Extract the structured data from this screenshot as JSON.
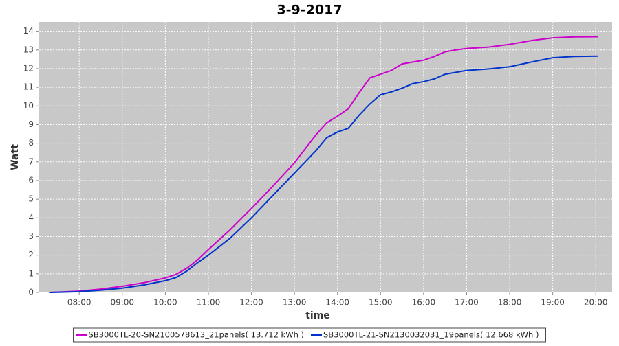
{
  "chart_data": {
    "type": "line",
    "title": "3-9-2017",
    "x_label": "time",
    "y_label": "Watt",
    "x": [
      7.3,
      7.5,
      8,
      8.5,
      9,
      9.5,
      10,
      10.25,
      10.5,
      10.75,
      11,
      11.5,
      12,
      12.5,
      13,
      13.25,
      13.5,
      13.75,
      14,
      14.25,
      14.5,
      14.75,
      15,
      15.25,
      15.5,
      15.75,
      16,
      16.25,
      16.5,
      16.75,
      17,
      17.5,
      18,
      18.5,
      19,
      19.5,
      20.05
    ],
    "series": [
      {
        "name": "SB3000TL-20-SN2100578613_21panels( 13.712 kWh )",
        "color": "#cc00cc",
        "values": [
          0,
          0.02,
          0.07,
          0.18,
          0.33,
          0.52,
          0.78,
          0.97,
          1.3,
          1.75,
          2.3,
          3.35,
          4.5,
          5.7,
          6.95,
          7.7,
          8.45,
          9.1,
          9.45,
          9.85,
          10.7,
          11.5,
          11.7,
          11.9,
          12.25,
          12.35,
          12.45,
          12.65,
          12.9,
          13.0,
          13.08,
          13.15,
          13.3,
          13.5,
          13.65,
          13.7,
          13.71
        ]
      },
      {
        "name": "SB3000TL-21-SN2130032031_19panels( 12.668 kWh )",
        "color": "#0033cc",
        "values": [
          0,
          0.01,
          0.04,
          0.12,
          0.23,
          0.4,
          0.63,
          0.8,
          1.15,
          1.6,
          2.0,
          2.9,
          4.0,
          5.2,
          6.4,
          7.0,
          7.6,
          8.3,
          8.6,
          8.8,
          9.5,
          10.1,
          10.6,
          10.75,
          10.95,
          11.2,
          11.3,
          11.45,
          11.7,
          11.8,
          11.9,
          11.98,
          12.1,
          12.35,
          12.58,
          12.65,
          12.67
        ]
      }
    ],
    "xlim": [
      7.07,
      20.38
    ],
    "xticks": [
      {
        "value": 8,
        "label": "08:00"
      },
      {
        "value": 9,
        "label": "09:00"
      },
      {
        "value": 10,
        "label": "10:00"
      },
      {
        "value": 11,
        "label": "11:00"
      },
      {
        "value": 12,
        "label": "12:00"
      },
      {
        "value": 13,
        "label": "13:00"
      },
      {
        "value": 14,
        "label": "14:00"
      },
      {
        "value": 15,
        "label": "15:00"
      },
      {
        "value": 16,
        "label": "16:00"
      },
      {
        "value": 17,
        "label": "17:00"
      },
      {
        "value": 18,
        "label": "18:00"
      },
      {
        "value": 19,
        "label": "19:00"
      },
      {
        "value": 20,
        "label": "20:00"
      }
    ],
    "ylim": [
      0,
      14.5
    ],
    "yticks": [
      0,
      1,
      2,
      3,
      4,
      5,
      6,
      7,
      8,
      9,
      10,
      11,
      12,
      13,
      14
    ],
    "grid": true,
    "legend": "bottom"
  }
}
